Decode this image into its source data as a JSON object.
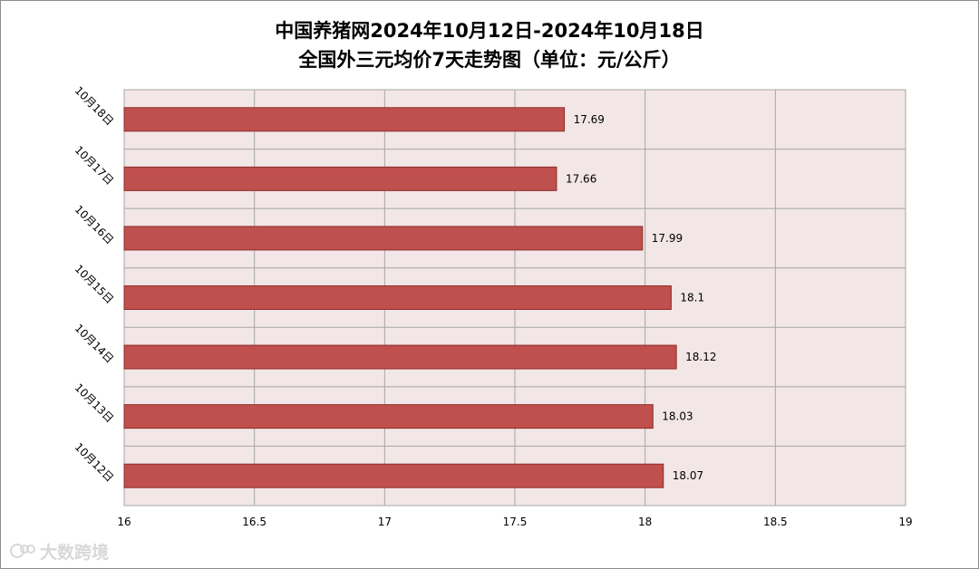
{
  "title": {
    "line1": "中国养猪网2024年10月12日-2024年10月18日",
    "line2": "全国外三元均价7天走势图（单位：元/公斤）"
  },
  "watermark": {
    "text": "大数跨境"
  },
  "colors": {
    "bar_fill": "#c0504d",
    "bar_stroke": "#8c2d2a",
    "plot_background": "#f2e6e6",
    "gridline": "#a6a6a6"
  },
  "chart_data": {
    "type": "bar",
    "orientation": "horizontal",
    "categories": [
      "10月18日",
      "10月17日",
      "10月16日",
      "10月15日",
      "10月14日",
      "10月13日",
      "10月12日"
    ],
    "values": [
      17.69,
      17.66,
      17.99,
      18.1,
      18.12,
      18.03,
      18.07
    ],
    "value_labels": [
      "17.69",
      "17.66",
      "17.99",
      "18.1",
      "18.12",
      "18.03",
      "18.07"
    ],
    "xlim": [
      16,
      19
    ],
    "x_ticks": [
      16,
      16.5,
      17,
      17.5,
      18,
      18.5,
      19
    ],
    "x_tick_labels": [
      "16",
      "16.5",
      "17",
      "17.5",
      "18",
      "18.5",
      "19"
    ],
    "grid": true,
    "legend": "none"
  }
}
